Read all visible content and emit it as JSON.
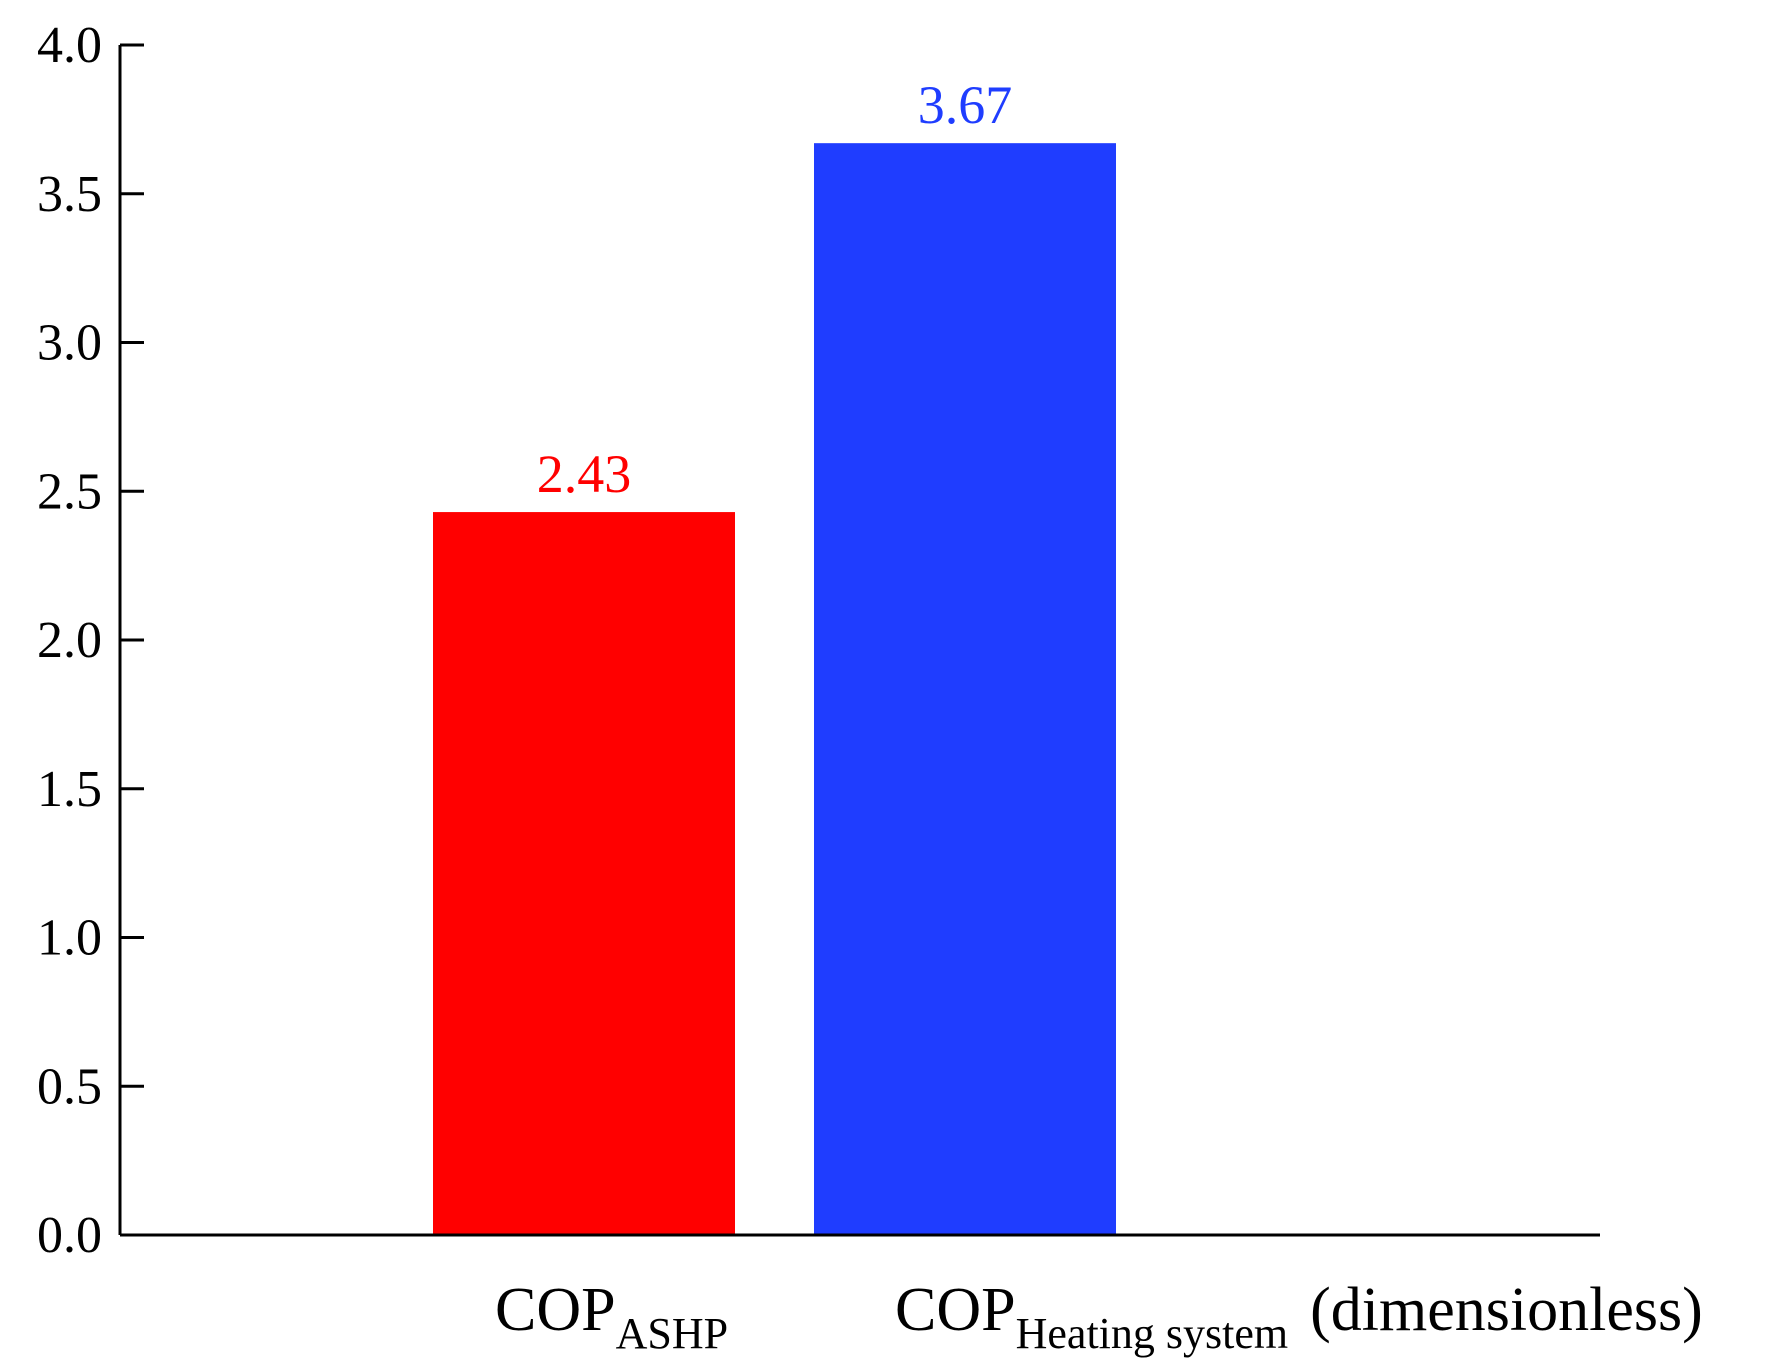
{
  "chart_data": {
    "type": "bar",
    "categories": [
      {
        "main": "COP",
        "sub": "ASHP"
      },
      {
        "main": "COP",
        "sub": "Heating system"
      }
    ],
    "values": [
      2.43,
      3.67
    ],
    "data_labels": [
      "2.43",
      "3.67"
    ],
    "colors": [
      "#ff0000",
      "#1f3dff"
    ],
    "unit_label": "(dimensionless)",
    "ylim": [
      0,
      4.0
    ],
    "yticks": [
      "0.0",
      "0.5",
      "1.0",
      "1.5",
      "2.0",
      "2.5",
      "3.0",
      "3.5",
      "4.0"
    ],
    "grid": false,
    "title": "",
    "xlabel": "",
    "ylabel": ""
  }
}
